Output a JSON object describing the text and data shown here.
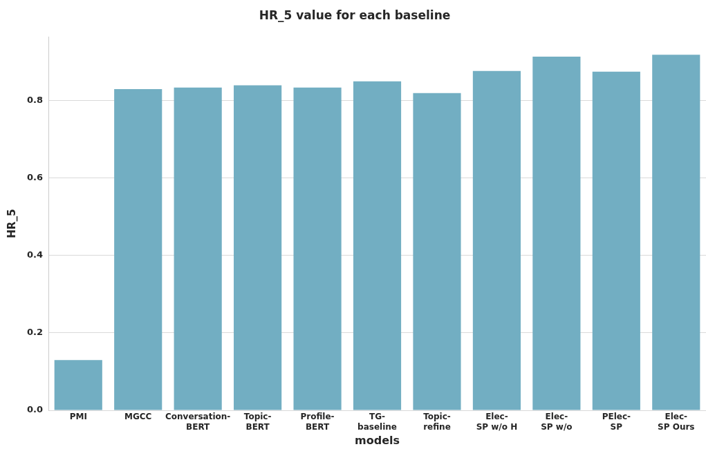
{
  "chart_data": {
    "type": "bar",
    "title": "HR_5 value for each baseline",
    "xlabel": "models",
    "ylabel": "HR_5",
    "categories": [
      "PMI",
      "MGCC",
      "Conversation-\nBERT",
      "Topic-\nBERT",
      "Profile-\nBERT",
      "TG-\nbaseline",
      "Topic-\nrefine",
      "Elec-\nSP w/o H",
      "Elec-\nSP w/o",
      "PElec-\nSP",
      "Elec-\nSP Ours"
    ],
    "values": [
      0.13,
      0.83,
      0.834,
      0.84,
      0.834,
      0.85,
      0.82,
      0.877,
      0.914,
      0.875,
      0.919
    ],
    "color": "#72aec2",
    "ylim": [
      0,
      0.965
    ],
    "yticks": [
      {
        "value": 0,
        "label": "0.0"
      },
      0.2,
      0.4,
      0.6,
      0.8
    ],
    "grid": "y",
    "legend": false
  }
}
